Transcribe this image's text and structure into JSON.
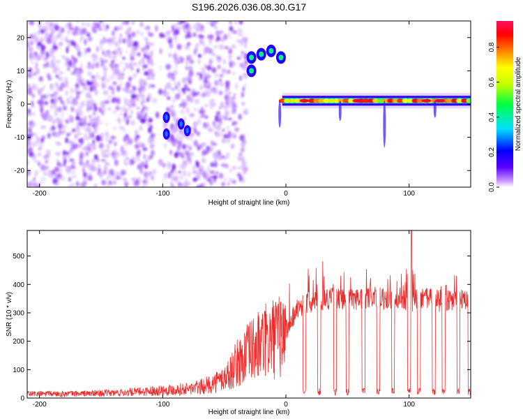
{
  "chart_data": [
    {
      "type": "heatmap",
      "title": "S196.2026.036.08.30.G17",
      "xlabel": "Height of straight line (km)",
      "ylabel": "Frequency (Hz)",
      "xlim": [
        -210,
        150
      ],
      "ylim": [
        -25,
        25
      ],
      "xticks": [
        -200,
        -100,
        0,
        100
      ],
      "xtick_labels": [
        "-200",
        "-100",
        "0",
        "100"
      ],
      "yticks": [
        20,
        10,
        0,
        -10,
        -20
      ],
      "ytick_labels": [
        "20",
        "10",
        "0",
        "-10",
        "-20"
      ],
      "colorbar": {
        "label": "Normalized spectral amplitude",
        "range": [
          0,
          0.95
        ],
        "ticks": [
          0.0,
          0.2,
          0.4,
          0.6,
          0.8
        ],
        "tick_labels": [
          "0.0",
          "0.2",
          "0.4",
          "0.6",
          "0.8"
        ]
      },
      "features": [
        {
          "name": "diffuse noise",
          "x_range": [
            -210,
            -32
          ],
          "freq_range": [
            -25,
            25
          ],
          "amplitude": 0.15
        },
        {
          "name": "segment A",
          "points": [
            [
              -97,
              -4
            ],
            [
              -97,
              -9
            ],
            [
              -85,
              -6
            ],
            [
              -80,
              -8
            ]
          ],
          "amplitude": 0.3
        },
        {
          "name": "segment B",
          "points": [
            [
              -28,
              14
            ],
            [
              -20,
              15
            ],
            [
              -12,
              16
            ],
            [
              -4,
              14
            ],
            [
              -28,
              10
            ]
          ],
          "amplitude": 0.45
        },
        {
          "name": "main track",
          "x_range": [
            -3,
            150
          ],
          "freq": 1,
          "amplitude": 0.95
        }
      ]
    },
    {
      "type": "line",
      "xlabel": "Height of straight line (km)",
      "ylabel": "SNR (10 * v/v)",
      "xlim": [
        -210,
        150
      ],
      "ylim": [
        0,
        590
      ],
      "xticks": [
        -200,
        -100,
        0,
        100
      ],
      "xtick_labels": [
        "-200",
        "-100",
        "0",
        "100"
      ],
      "yticks": [
        0,
        100,
        200,
        300,
        400,
        500
      ],
      "ytick_labels": [
        "0",
        "100",
        "200",
        "300",
        "400",
        "500"
      ],
      "series": [
        {
          "name": "SNR",
          "color": "#ee2a2a",
          "x": [
            -210,
            -180,
            -160,
            -140,
            -120,
            -100,
            -80,
            -70,
            -60,
            -50,
            -45,
            -40,
            -35,
            -30,
            -25,
            -20,
            -15,
            -10,
            -5,
            0,
            5,
            10,
            15,
            20,
            25,
            30,
            40,
            50,
            60,
            70,
            80,
            90,
            100,
            110,
            120,
            130,
            140,
            150
          ],
          "y": [
            15,
            15,
            16,
            18,
            22,
            28,
            32,
            38,
            50,
            70,
            90,
            120,
            140,
            160,
            175,
            190,
            200,
            210,
            215,
            240,
            280,
            320,
            330,
            340,
            345,
            350,
            350,
            345,
            350,
            355,
            350,
            345,
            340,
            350,
            345,
            340,
            345,
            340
          ]
        }
      ],
      "dropouts_x": [
        15,
        27,
        40,
        50,
        63,
        75,
        87,
        100,
        108,
        120,
        128,
        140,
        149
      ],
      "peak": {
        "x": 102,
        "y": 590
      }
    }
  ]
}
